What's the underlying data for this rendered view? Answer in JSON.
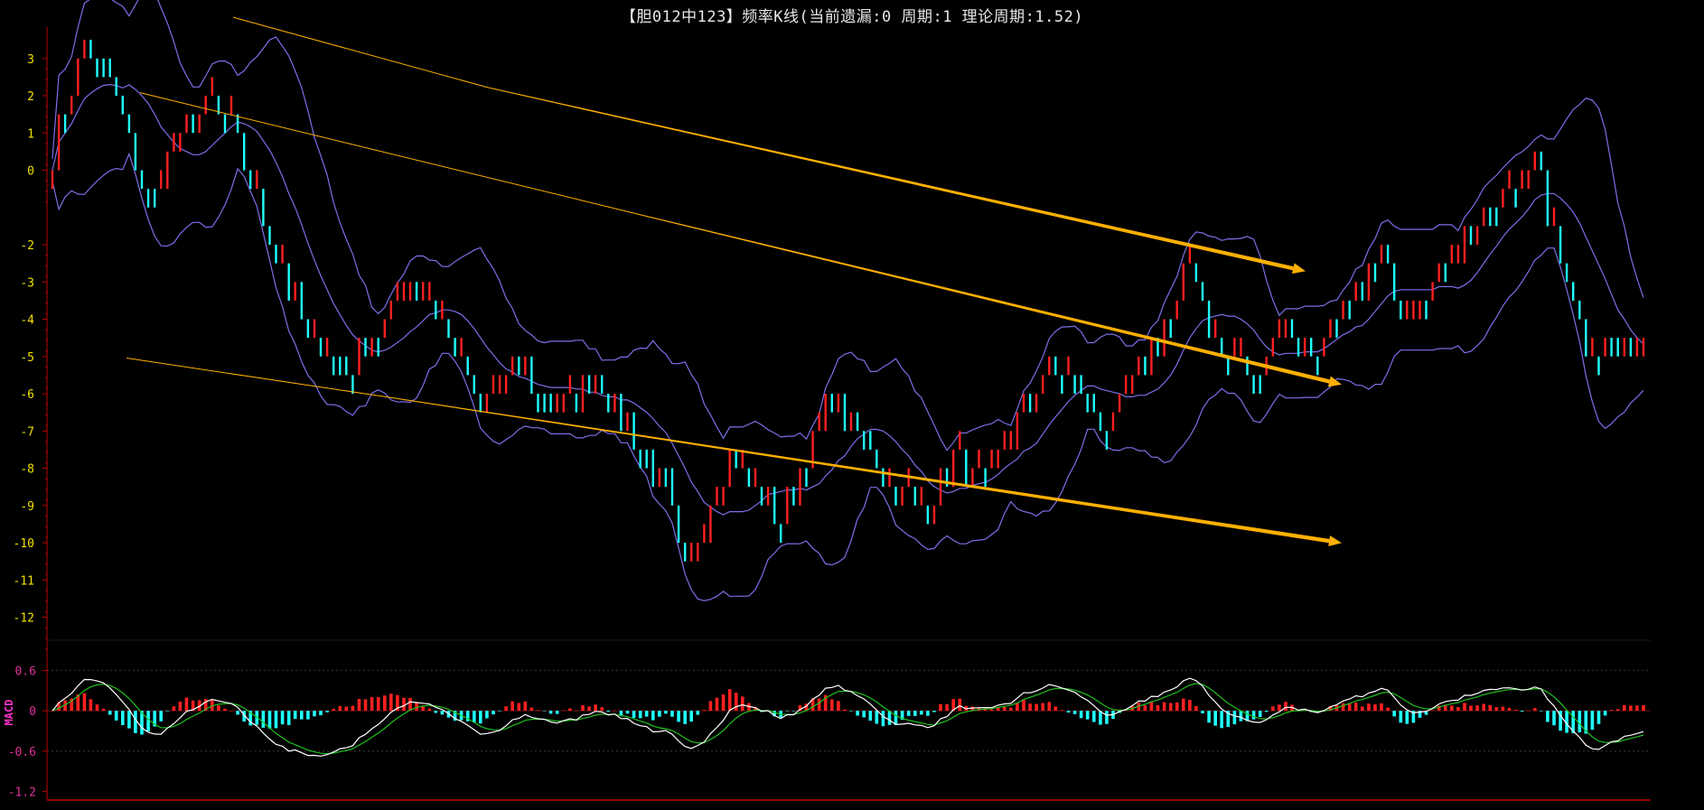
{
  "title": "【胆012中123】频率K线(当前遗漏:0 周期:1 理论周期:1.52)",
  "macd_label": "MACD",
  "colors": {
    "up": "#ff2020",
    "down": "#20ffff",
    "band": "#7a70e8",
    "trend": "#ffb000",
    "dif": "#ffffff",
    "dea": "#20c020",
    "axis": "#c00000",
    "ytick": "#f0e000",
    "mtick": "#e0309a"
  },
  "chart_data": [
    {
      "type": "candlestick",
      "title": "【胆012中123】频率K线(当前遗漏:0 周期:1 理论周期:1.52)",
      "ylim": [
        -12.4,
        3.6
      ],
      "yticks": [
        3,
        2,
        1,
        0,
        -2,
        -3,
        -4,
        -5,
        -6,
        -7,
        -8,
        -9,
        -10,
        -11,
        -12
      ],
      "ytick_labels": [
        "3",
        "2",
        "1",
        "0",
        "-2",
        "-3",
        "-4",
        "-5",
        "-6",
        "-7",
        "-8",
        "-9",
        "-10",
        "-11",
        "-12"
      ],
      "n_bars": 250,
      "close_keypoints": [
        [
          0,
          0.5
        ],
        [
          5,
          3.3
        ],
        [
          9,
          2.6
        ],
        [
          15,
          -0.8
        ],
        [
          18,
          0.2
        ],
        [
          24,
          1.8
        ],
        [
          28,
          1.0
        ],
        [
          35,
          -2.2
        ],
        [
          40,
          -4.5
        ],
        [
          47,
          -5.3
        ],
        [
          52,
          -4.0
        ],
        [
          56,
          -3.0
        ],
        [
          60,
          -3.6
        ],
        [
          67,
          -6.5
        ],
        [
          73,
          -5.2
        ],
        [
          79,
          -6.5
        ],
        [
          85,
          -5.3
        ],
        [
          90,
          -6.8
        ],
        [
          96,
          -8.5
        ],
        [
          99,
          -11.0
        ],
        [
          103,
          -9.0
        ],
        [
          106,
          -7.5
        ],
        [
          110,
          -8.6
        ],
        [
          114,
          -9.3
        ],
        [
          118,
          -7.8
        ],
        [
          122,
          -6.2
        ],
        [
          127,
          -7.2
        ],
        [
          132,
          -8.6
        ],
        [
          137,
          -9.2
        ],
        [
          141,
          -7.8
        ],
        [
          146,
          -8.5
        ],
        [
          151,
          -6.8
        ],
        [
          156,
          -5.2
        ],
        [
          161,
          -6.0
        ],
        [
          166,
          -6.8
        ],
        [
          171,
          -5.0
        ],
        [
          176,
          -3.6
        ],
        [
          178,
          -2.4
        ],
        [
          183,
          -5.0
        ],
        [
          188,
          -5.5
        ],
        [
          193,
          -4.2
        ],
        [
          197,
          -5.0
        ],
        [
          203,
          -3.8
        ],
        [
          208,
          -2.3
        ],
        [
          212,
          -3.8
        ],
        [
          216,
          -2.9
        ],
        [
          221,
          -1.8
        ],
        [
          226,
          -1.0
        ],
        [
          232,
          0.3
        ],
        [
          236,
          -2.3
        ],
        [
          240,
          -4.5
        ],
        [
          246,
          -4.8
        ]
      ],
      "trend_lines": [
        {
          "from": [
            25,
            8.9
          ],
          "to": [
            1445,
            300.3
          ],
          "faint_from": [
            258,
            19.1
          ],
          "faint_to": [
            540,
            96.9
          ]
        },
        {
          "from": [
            155,
            102.6
          ],
          "to": [
            1485,
            425.8
          ],
          "faint_from": [
            155,
            102.6
          ],
          "faint_to": [
            710,
            238.1
          ]
        },
        {
          "from": [
            140,
            396.5
          ],
          "to": [
            1485,
            601.2
          ],
          "faint_from": [
            140,
            396.5
          ],
          "faint_to": [
            420,
            438.4
          ]
        }
      ]
    },
    {
      "type": "macd",
      "name": "MACD",
      "ylim": [
        -1.3,
        0.9
      ],
      "yticks": [
        0.6,
        0,
        -0.6,
        -1.2
      ],
      "ytick_labels": [
        "0.6",
        "0",
        "-0.6",
        "-1.2"
      ]
    }
  ]
}
